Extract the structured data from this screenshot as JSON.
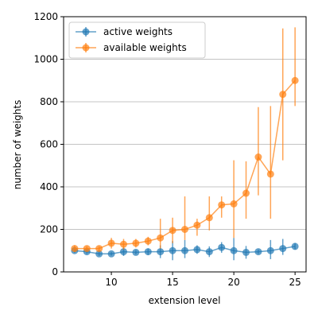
{
  "chart_data": {
    "type": "line",
    "xlabel": "extension level",
    "ylabel": "number of weights",
    "xlim": [
      6.1,
      25.9
    ],
    "ylim": [
      0,
      1200
    ],
    "xticks": [
      10,
      15,
      20,
      25
    ],
    "yticks": [
      0,
      200,
      400,
      600,
      800,
      1000,
      1200
    ],
    "y_grid": true,
    "legend_position": "top-left",
    "series": [
      {
        "name": "active weights",
        "color": "#1f77b4",
        "x": [
          7,
          8,
          9,
          10,
          11,
          12,
          13,
          14,
          15,
          16,
          17,
          18,
          19,
          20,
          21,
          22,
          23,
          24,
          25
        ],
        "y": [
          100,
          95,
          85,
          85,
          95,
          92,
          95,
          95,
          100,
          100,
          105,
          95,
          115,
          100,
          92,
          95,
          100,
          110,
          120
        ],
        "err_low": [
          10,
          10,
          10,
          8,
          20,
          10,
          15,
          30,
          45,
          35,
          20,
          25,
          25,
          45,
          30,
          10,
          40,
          30,
          15
        ],
        "err_high": [
          10,
          10,
          10,
          8,
          20,
          10,
          15,
          30,
          45,
          50,
          20,
          25,
          25,
          60,
          30,
          10,
          50,
          45,
          15
        ]
      },
      {
        "name": "available weights",
        "color": "#ff7f0e",
        "x": [
          7,
          8,
          9,
          10,
          11,
          12,
          13,
          14,
          15,
          16,
          17,
          18,
          19,
          20,
          21,
          22,
          23,
          24,
          25
        ],
        "y": [
          110,
          110,
          110,
          135,
          130,
          135,
          145,
          160,
          195,
          200,
          220,
          255,
          315,
          320,
          370,
          540,
          460,
          835,
          900
        ],
        "err_low": [
          15,
          10,
          10,
          25,
          25,
          20,
          20,
          50,
          60,
          50,
          50,
          60,
          60,
          160,
          120,
          180,
          210,
          310,
          120
        ],
        "err_high": [
          15,
          10,
          10,
          25,
          25,
          20,
          20,
          90,
          60,
          155,
          30,
          100,
          40,
          205,
          150,
          235,
          320,
          310,
          250
        ]
      }
    ]
  }
}
